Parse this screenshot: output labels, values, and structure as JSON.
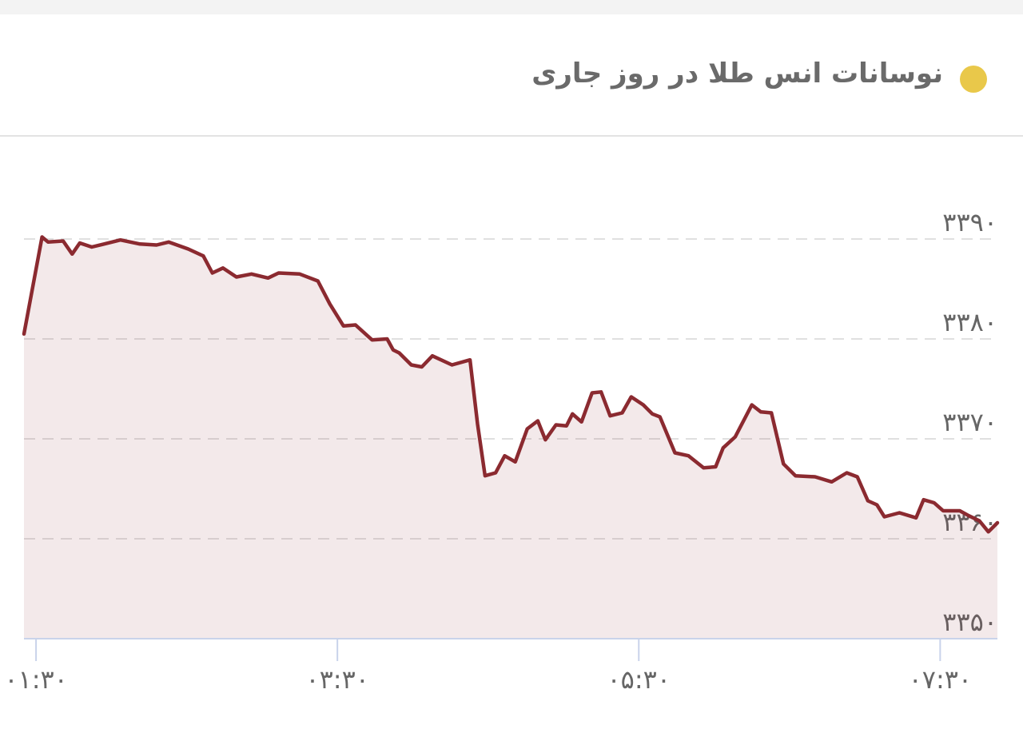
{
  "chart_data": {
    "type": "line",
    "title": "نوسانات انس طلا در روز جاری",
    "x": [
      1.42,
      1.54,
      1.58,
      1.68,
      1.74,
      1.79,
      1.87,
      2.06,
      2.19,
      2.3,
      2.38,
      2.51,
      2.61,
      2.67,
      2.74,
      2.83,
      2.93,
      3.04,
      3.11,
      3.25,
      3.37,
      3.45,
      3.54,
      3.62,
      3.73,
      3.83,
      3.87,
      3.91,
      3.99,
      4.06,
      4.13,
      4.26,
      4.38,
      4.43,
      4.48,
      4.55,
      4.61,
      4.68,
      4.76,
      4.83,
      4.88,
      4.95,
      5.02,
      5.06,
      5.12,
      5.19,
      5.25,
      5.31,
      5.39,
      5.45,
      5.53,
      5.59,
      5.64,
      5.74,
      5.83,
      5.93,
      6.01,
      6.06,
      6.14,
      6.25,
      6.31,
      6.38,
      6.46,
      6.54,
      6.67,
      6.78,
      6.88,
      6.95,
      7.02,
      7.08,
      7.13,
      7.23,
      7.34,
      7.39,
      7.46,
      7.52,
      7.63,
      7.69,
      7.76,
      7.82,
      7.88
    ],
    "series": [
      {
        "color": "#8b2a30",
        "values": [
          3380.5,
          3390.2,
          3389.7,
          3389.8,
          3388.5,
          3389.6,
          3389.2,
          3389.9,
          3389.5,
          3389.4,
          3389.7,
          3389.0,
          3388.3,
          3386.6,
          3387.1,
          3386.2,
          3386.5,
          3386.1,
          3386.6,
          3386.5,
          3385.8,
          3383.5,
          3381.3,
          3381.4,
          3379.9,
          3380.0,
          3378.9,
          3378.6,
          3377.4,
          3377.2,
          3378.3,
          3377.4,
          3377.9,
          3371.5,
          3366.3,
          3366.6,
          3368.3,
          3367.7,
          3371.0,
          3371.8,
          3369.9,
          3371.4,
          3371.3,
          3372.5,
          3371.7,
          3374.6,
          3374.7,
          3372.3,
          3372.6,
          3374.2,
          3373.4,
          3372.5,
          3372.2,
          3368.6,
          3368.3,
          3367.1,
          3367.2,
          3369.1,
          3370.2,
          3373.4,
          3372.7,
          3372.6,
          3367.5,
          3366.3,
          3366.2,
          3365.7,
          3366.6,
          3366.2,
          3363.8,
          3363.4,
          3362.2,
          3362.6,
          3362.1,
          3363.9,
          3363.6,
          3362.8,
          3362.8,
          3362.3,
          3361.8,
          3360.7,
          3361.6
        ]
      }
    ],
    "xlim": [
      1.42,
      7.88
    ],
    "xticks": [
      {
        "value": 1.5,
        "label": "۰۱:۳۰"
      },
      {
        "value": 3.5,
        "label": "۰۳:۳۰"
      },
      {
        "value": 5.5,
        "label": "۰۵:۳۰"
      },
      {
        "value": 7.5,
        "label": "۰۷:۳۰"
      }
    ],
    "ylim": [
      3350,
      3390
    ],
    "yticks": [
      {
        "value": 3390,
        "label": "۳۳۹۰"
      },
      {
        "value": 3380,
        "label": "۳۳۸۰"
      },
      {
        "value": 3370,
        "label": "۳۳۷۰"
      },
      {
        "value": 3360,
        "label": "۳۳۶۰"
      },
      {
        "value": 3350,
        "label": "۳۳۵۰"
      }
    ],
    "grid": true
  }
}
